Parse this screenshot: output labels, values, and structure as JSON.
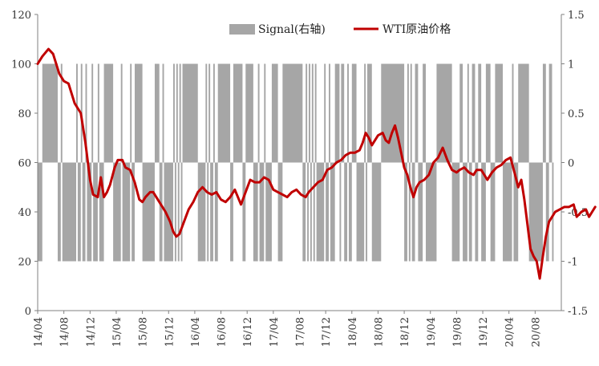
{
  "chart_data": {
    "type": "bar+line",
    "legend": {
      "signal_label": "Signal(右轴)",
      "wti_label": "WTI原油价格",
      "placement": "top-center"
    },
    "colors": {
      "signal": "#a6a6a6",
      "wti": "#c00000",
      "axis": "#808080",
      "text": "#333333"
    },
    "left_axis": {
      "range": [
        0,
        120
      ],
      "ticks": [
        "0",
        "20",
        "40",
        "60",
        "80",
        "100",
        "120"
      ]
    },
    "right_axis": {
      "range": [
        -1.5,
        1.5
      ],
      "ticks": [
        "-1.5",
        "-1",
        "-0.5",
        "0",
        "0.5",
        "1",
        "1.5"
      ]
    },
    "x_ticks": [
      "14/04",
      "14/08",
      "14/12",
      "15/04",
      "15/08",
      "15/12",
      "16/04",
      "16/08",
      "16/12",
      "17/04",
      "17/08",
      "17/12",
      "18/04",
      "18/08",
      "18/12",
      "19/04",
      "19/08",
      "19/12",
      "20/04",
      "20/08"
    ],
    "weeks_per_tick": 17,
    "signal_runs": [
      [
        3,
        -1
      ],
      [
        10,
        1
      ],
      [
        2,
        -1
      ],
      [
        1,
        1
      ],
      [
        9,
        -1
      ],
      [
        1,
        1
      ],
      [
        2,
        -1
      ],
      [
        1,
        1
      ],
      [
        2,
        -1
      ],
      [
        1,
        1
      ],
      [
        3,
        -1
      ],
      [
        1,
        1
      ],
      [
        3,
        -1
      ],
      [
        1,
        1
      ],
      [
        3,
        -1
      ],
      [
        6,
        1
      ],
      [
        5,
        -1
      ],
      [
        1,
        1
      ],
      [
        5,
        -1
      ],
      [
        1,
        1
      ],
      [
        2,
        -1
      ],
      [
        5,
        1
      ],
      [
        8,
        -1
      ],
      [
        3,
        1
      ],
      [
        2,
        -1
      ],
      [
        1,
        1
      ],
      [
        6,
        -1
      ],
      [
        1,
        1
      ],
      [
        1,
        -1
      ],
      [
        1,
        1
      ],
      [
        1,
        -1
      ],
      [
        1,
        1
      ],
      [
        1,
        -1
      ],
      [
        10,
        1
      ],
      [
        5,
        -1
      ],
      [
        1,
        1
      ],
      [
        1,
        -1
      ],
      [
        1,
        1
      ],
      [
        2,
        -1
      ],
      [
        1,
        1
      ],
      [
        2,
        -1
      ],
      [
        8,
        1
      ],
      [
        2,
        -1
      ],
      [
        6,
        1
      ],
      [
        2,
        -1
      ],
      [
        5,
        1
      ],
      [
        3,
        -1
      ],
      [
        1,
        1
      ],
      [
        3,
        -1
      ],
      [
        1,
        1
      ],
      [
        4,
        -1
      ],
      [
        4,
        1
      ],
      [
        3,
        -1
      ],
      [
        13,
        1
      ],
      [
        2,
        -1
      ],
      [
        1,
        1
      ],
      [
        1,
        -1
      ],
      [
        1,
        1
      ],
      [
        1,
        -1
      ],
      [
        1,
        1
      ],
      [
        1,
        -1
      ],
      [
        1,
        1
      ],
      [
        5,
        -1
      ],
      [
        1,
        1
      ],
      [
        2,
        -1
      ],
      [
        1,
        1
      ],
      [
        3,
        -1
      ],
      [
        3,
        1
      ],
      [
        1,
        -1
      ],
      [
        2,
        1
      ],
      [
        2,
        -1
      ],
      [
        1,
        1
      ],
      [
        2,
        -1
      ],
      [
        3,
        1
      ],
      [
        5,
        -1
      ],
      [
        1,
        1
      ],
      [
        1,
        -1
      ],
      [
        3,
        1
      ],
      [
        6,
        -1
      ],
      [
        15,
        1
      ],
      [
        2,
        -1
      ],
      [
        1,
        1
      ],
      [
        1,
        -1
      ],
      [
        1,
        1
      ],
      [
        2,
        -1
      ],
      [
        2,
        1
      ],
      [
        3,
        -1
      ],
      [
        2,
        1
      ],
      [
        7,
        -1
      ],
      [
        10,
        1
      ],
      [
        5,
        -1
      ],
      [
        2,
        1
      ],
      [
        3,
        -1
      ],
      [
        1,
        1
      ],
      [
        2,
        -1
      ],
      [
        2,
        1
      ],
      [
        2,
        -1
      ],
      [
        2,
        1
      ],
      [
        3,
        -1
      ],
      [
        3,
        1
      ],
      [
        3,
        -1
      ],
      [
        5,
        1
      ],
      [
        6,
        -1
      ],
      [
        1,
        1
      ],
      [
        3,
        -1
      ],
      [
        7,
        1
      ],
      [
        9,
        -1
      ],
      [
        2,
        1
      ],
      [
        2,
        -1
      ],
      [
        2,
        1
      ],
      [
        1,
        -1
      ]
    ],
    "wti_knots": [
      [
        0,
        100
      ],
      [
        3,
        103
      ],
      [
        7,
        106
      ],
      [
        10,
        104
      ],
      [
        14,
        96
      ],
      [
        17,
        93
      ],
      [
        20,
        92
      ],
      [
        24,
        84
      ],
      [
        28,
        80
      ],
      [
        31,
        68
      ],
      [
        34,
        53
      ],
      [
        36,
        47
      ],
      [
        39,
        46
      ],
      [
        41,
        54
      ],
      [
        43,
        46
      ],
      [
        45,
        48
      ],
      [
        47,
        51
      ],
      [
        50,
        58
      ],
      [
        52,
        61
      ],
      [
        55,
        61
      ],
      [
        57,
        58
      ],
      [
        60,
        57
      ],
      [
        63,
        52
      ],
      [
        66,
        45
      ],
      [
        68,
        44
      ],
      [
        70,
        46
      ],
      [
        73,
        48
      ],
      [
        75,
        48
      ],
      [
        77,
        46
      ],
      [
        80,
        43
      ],
      [
        83,
        40
      ],
      [
        86,
        36
      ],
      [
        88,
        32
      ],
      [
        90,
        30
      ],
      [
        92,
        31
      ],
      [
        95,
        36
      ],
      [
        98,
        41
      ],
      [
        101,
        44
      ],
      [
        104,
        48
      ],
      [
        107,
        50
      ],
      [
        110,
        48
      ],
      [
        113,
        47
      ],
      [
        116,
        48
      ],
      [
        119,
        45
      ],
      [
        122,
        44
      ],
      [
        125,
        46
      ],
      [
        128,
        49
      ],
      [
        130,
        46
      ],
      [
        132,
        43
      ],
      [
        135,
        48
      ],
      [
        138,
        53
      ],
      [
        141,
        52
      ],
      [
        144,
        52
      ],
      [
        147,
        54
      ],
      [
        150,
        53
      ],
      [
        153,
        49
      ],
      [
        156,
        48
      ],
      [
        159,
        47
      ],
      [
        162,
        46
      ],
      [
        165,
        48
      ],
      [
        168,
        49
      ],
      [
        171,
        47
      ],
      [
        174,
        46
      ],
      [
        176,
        48
      ],
      [
        179,
        50
      ],
      [
        182,
        52
      ],
      [
        185,
        53
      ],
      [
        188,
        57
      ],
      [
        191,
        58
      ],
      [
        194,
        60
      ],
      [
        197,
        61
      ],
      [
        200,
        63
      ],
      [
        203,
        64
      ],
      [
        206,
        64
      ],
      [
        209,
        65
      ],
      [
        211,
        68
      ],
      [
        213,
        72
      ],
      [
        215,
        70
      ],
      [
        217,
        67
      ],
      [
        219,
        69
      ],
      [
        221,
        71
      ],
      [
        224,
        72
      ],
      [
        226,
        69
      ],
      [
        228,
        68
      ],
      [
        230,
        72
      ],
      [
        232,
        75
      ],
      [
        234,
        70
      ],
      [
        236,
        64
      ],
      [
        238,
        58
      ],
      [
        240,
        55
      ],
      [
        242,
        50
      ],
      [
        244,
        46
      ],
      [
        246,
        50
      ],
      [
        248,
        52
      ],
      [
        251,
        53
      ],
      [
        254,
        55
      ],
      [
        257,
        60
      ],
      [
        260,
        62
      ],
      [
        263,
        66
      ],
      [
        266,
        61
      ],
      [
        269,
        57
      ],
      [
        272,
        56
      ],
      [
        274,
        57
      ],
      [
        277,
        58
      ],
      [
        280,
        56
      ],
      [
        283,
        55
      ],
      [
        285,
        57
      ],
      [
        288,
        57
      ],
      [
        290,
        55
      ],
      [
        292,
        53
      ],
      [
        295,
        56
      ],
      [
        298,
        58
      ],
      [
        301,
        59
      ],
      [
        304,
        61
      ],
      [
        307,
        62
      ],
      [
        310,
        55
      ],
      [
        312,
        50
      ],
      [
        314,
        53
      ],
      [
        316,
        45
      ],
      [
        318,
        35
      ],
      [
        320,
        25
      ],
      [
        322,
        22
      ],
      [
        324,
        20
      ],
      [
        326,
        13
      ],
      [
        328,
        22
      ],
      [
        330,
        30
      ],
      [
        332,
        36
      ],
      [
        334,
        38
      ],
      [
        336,
        40
      ],
      [
        339,
        41
      ],
      [
        342,
        42
      ],
      [
        345,
        42
      ],
      [
        348,
        43
      ],
      [
        350,
        38
      ],
      [
        353,
        40
      ],
      [
        356,
        41
      ],
      [
        358,
        38
      ],
      [
        360,
        40
      ],
      [
        362,
        42
      ]
    ]
  }
}
